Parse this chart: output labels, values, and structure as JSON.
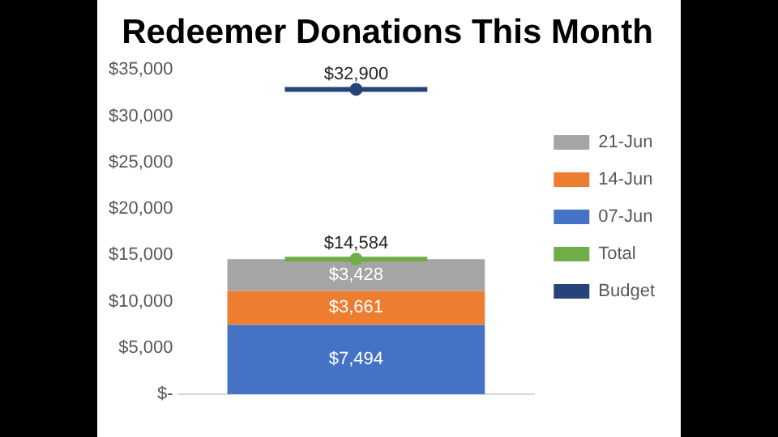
{
  "chart_data": {
    "type": "bar",
    "title": "Redeemer Donations This Month",
    "categories": [
      null
    ],
    "stacked": true,
    "series": [
      {
        "name": "07-Jun",
        "color": "#4472c4",
        "values": [
          7494
        ],
        "value_labels": [
          "$7,494"
        ]
      },
      {
        "name": "14-Jun",
        "color": "#ed7d31",
        "values": [
          3661
        ],
        "value_labels": [
          "$3,661"
        ]
      },
      {
        "name": "21-Jun",
        "color": "#a5a5a5",
        "values": [
          3428
        ],
        "value_labels": [
          "$3,428"
        ]
      },
      {
        "name": "Total",
        "type": "line",
        "marker": "circle",
        "color": "#70ad47",
        "values": [
          14584
        ],
        "value_labels": [
          "$14,584"
        ]
      },
      {
        "name": "Budget",
        "type": "line",
        "marker": "circle",
        "color": "#264478",
        "values": [
          32900
        ],
        "value_labels": [
          "$32,900"
        ]
      }
    ],
    "ylim": [
      0,
      35000
    ],
    "yticks": [
      {
        "value": 0,
        "label": "$-"
      },
      {
        "value": 5000,
        "label": "$5,000"
      },
      {
        "value": 10000,
        "label": "$10,000"
      },
      {
        "value": 15000,
        "label": "$15,000"
      },
      {
        "value": 20000,
        "label": "$20,000"
      },
      {
        "value": 25000,
        "label": "$25,000"
      },
      {
        "value": 30000,
        "label": "$30,000"
      },
      {
        "value": 35000,
        "label": "$35,000"
      }
    ],
    "grid": false,
    "legend": "right"
  }
}
